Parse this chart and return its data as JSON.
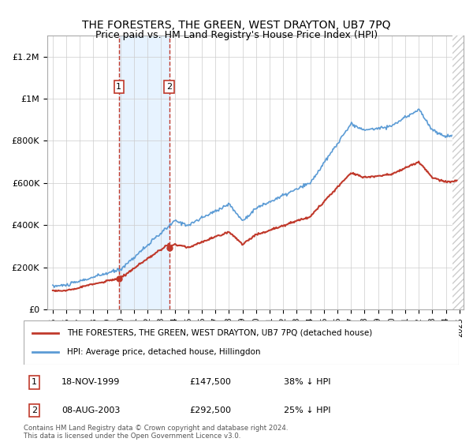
{
  "title": "THE FORESTERS, THE GREEN, WEST DRAYTON, UB7 7PQ",
  "subtitle": "Price paid vs. HM Land Registry's House Price Index (HPI)",
  "ylim": [
    0,
    1300000
  ],
  "yticks": [
    0,
    200000,
    400000,
    600000,
    800000,
    1000000,
    1200000
  ],
  "ytick_labels": [
    "£0",
    "£200K",
    "£400K",
    "£600K",
    "£800K",
    "£1M",
    "£1.2M"
  ],
  "hpi_color": "#5b9bd5",
  "price_color": "#c0392b",
  "shade_color": "#ddeeff",
  "dashed_color": "#c0392b",
  "t1": 1999.88,
  "t2": 2003.6,
  "transaction1_price": 147500,
  "transaction2_price": 292500,
  "transaction1_date": "18-NOV-1999",
  "transaction2_date": "08-AUG-2003",
  "transaction1_pct": "38% ↓ HPI",
  "transaction2_pct": "25% ↓ HPI",
  "legend_label_red": "THE FORESTERS, THE GREEN, WEST DRAYTON, UB7 7PQ (detached house)",
  "legend_label_blue": "HPI: Average price, detached house, Hillingdon",
  "footer": "Contains HM Land Registry data © Crown copyright and database right 2024.\nThis data is licensed under the Open Government Licence v3.0."
}
